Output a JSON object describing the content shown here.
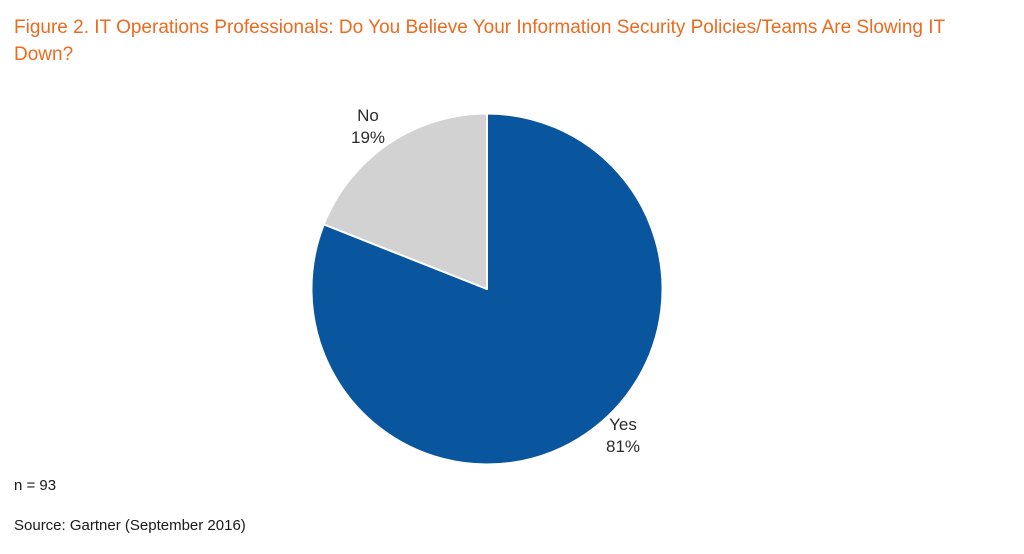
{
  "title": "Figure 2. IT Operations Professionals: Do You Believe Your Information Security Policies/Teams Are Slowing IT Down?",
  "footnote": "n = 93",
  "source": "Source: Gartner (September 2016)",
  "colors": {
    "title_orange": "#ee6a1e",
    "yes_blue": "#0a569e",
    "no_gray": "#d2d2d2",
    "slice_separator": "#ffffff"
  },
  "chart_data": {
    "type": "pie",
    "title": "IT Operations Professionals: Do You Believe Your Information Security Policies/Teams Are Slowing IT Down?",
    "unit": "%",
    "start_angle_deg": 0,
    "direction": "clockwise",
    "labels_position": "outside",
    "legend_position": "none",
    "sample_size": 93,
    "slices": [
      {
        "label": "Yes",
        "value": 81,
        "color": "#0a569e"
      },
      {
        "label": "No",
        "value": 19,
        "color": "#d2d2d2"
      }
    ]
  }
}
